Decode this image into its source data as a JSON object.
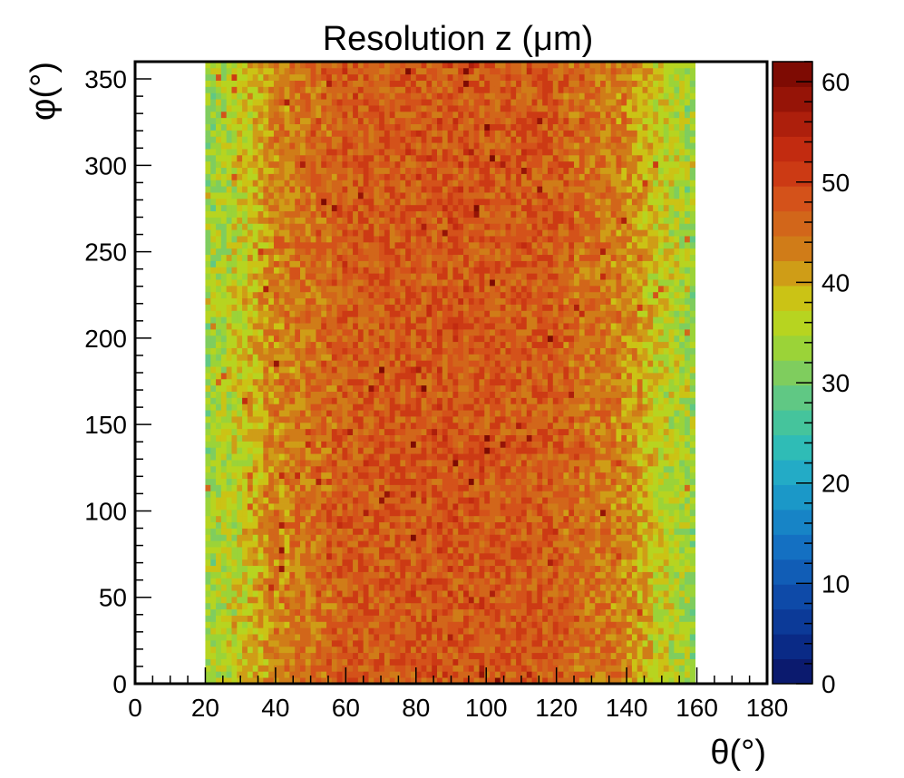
{
  "chart_data": {
    "type": "heatmap",
    "title": "Resolution z (μm)",
    "xlabel": "θ(°)",
    "ylabel": "φ(°)",
    "xlim": [
      0,
      180
    ],
    "ylim": [
      0,
      360
    ],
    "x_ticks": [
      "0",
      "20",
      "40",
      "60",
      "80",
      "100",
      "120",
      "140",
      "160",
      "180"
    ],
    "y_ticks": [
      "0",
      "50",
      "100",
      "150",
      "200",
      "250",
      "300",
      "350"
    ],
    "colorbar": {
      "range": [
        0,
        62
      ],
      "ticks": [
        "0",
        "10",
        "20",
        "30",
        "40",
        "50",
        "60"
      ],
      "colors": [
        "#0b1a6e",
        "#0a2a86",
        "#0c3a98",
        "#0e4aa8",
        "#115db6",
        "#1470c2",
        "#1784c6",
        "#1b98c8",
        "#23abc6",
        "#2fbcb6",
        "#45c49c",
        "#60c884",
        "#7fcd5e",
        "#9bd338",
        "#b7d420",
        "#cbc315",
        "#cf9d17",
        "#d07c18",
        "#d2661a",
        "#d4521a",
        "#cc3a14",
        "#c22b10",
        "#ad1f0c",
        "#961407",
        "#7e0b03"
      ]
    },
    "data_region": {
      "theta_range": [
        20,
        160
      ],
      "phi_range": [
        0,
        360
      ],
      "bin_width_theta": 1.5,
      "bin_width_phi": 3.6,
      "profile": {
        "theta": [
          20,
          30,
          40,
          60,
          90,
          120,
          140,
          150,
          160
        ],
        "resolution_um": [
          33,
          37,
          43,
          47,
          48,
          47,
          43,
          37,
          33
        ]
      }
    },
    "grid": false,
    "legend": "colorbar-right"
  }
}
